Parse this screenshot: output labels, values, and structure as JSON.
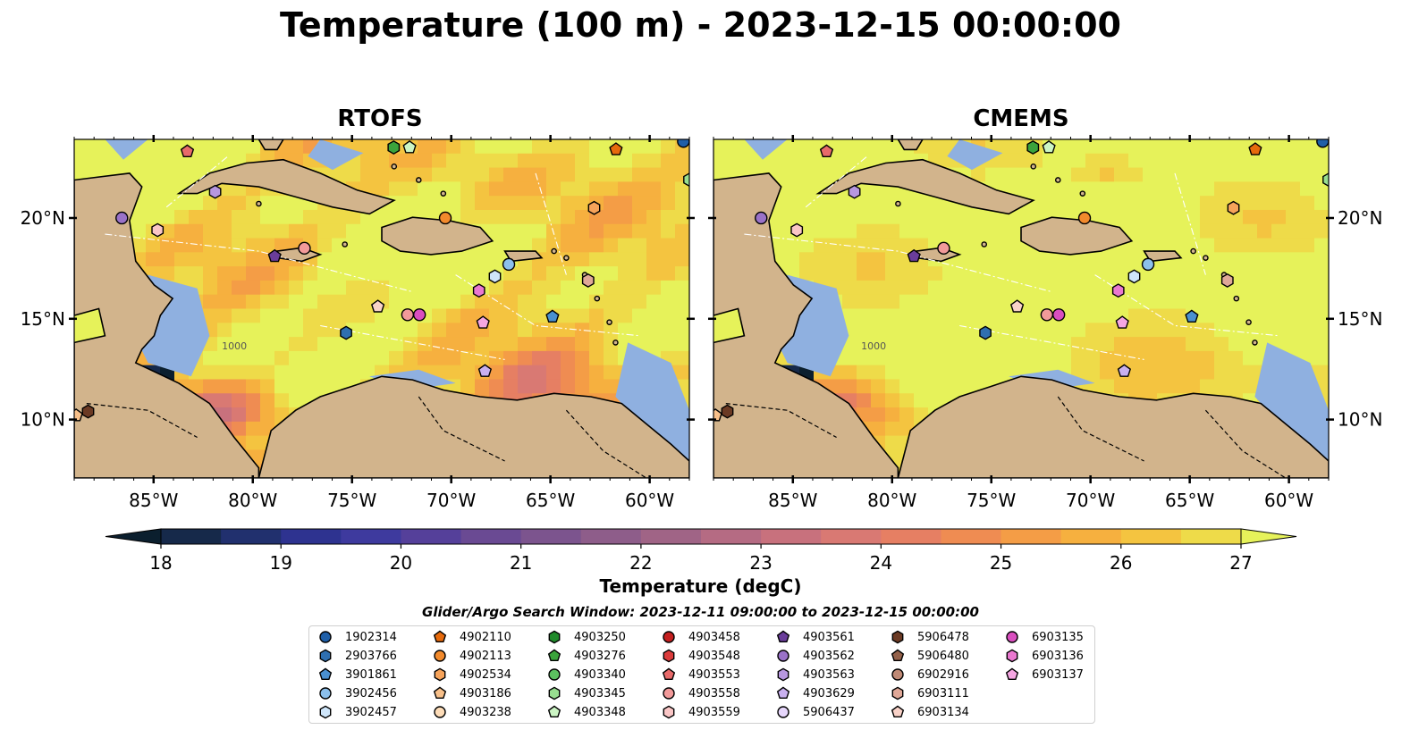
{
  "title": "Temperature (100 m) - 2023-12-15 00:00:00",
  "colors": {
    "land": "#d2b48c",
    "shallow": "#8fb0e0",
    "bg": "#ffffff",
    "colormap": [
      "#0b1f2e",
      "#16294a",
      "#21306e",
      "#2e3390",
      "#3e3a9e",
      "#55409a",
      "#6a4a93",
      "#7c548e",
      "#8e5d8a",
      "#a06486",
      "#b56b83",
      "#c8717d",
      "#d97973",
      "#e67f63",
      "#ef8c52",
      "#f49d46",
      "#f6b03f",
      "#f4c440",
      "#eedb49",
      "#e6f25a"
    ]
  },
  "chart_data": [
    {
      "type": "heatmap",
      "panel_title": "RTOFS",
      "xticks": [
        "85°W",
        "80°W",
        "75°W",
        "70°W",
        "65°W",
        "60°W"
      ],
      "yticks": [
        "20°N",
        "15°N",
        "10°N"
      ],
      "lon_range": [
        -89,
        -58
      ],
      "lat_range": [
        7.1,
        23.9
      ],
      "contour_labels": [
        "1000"
      ]
    },
    {
      "type": "heatmap",
      "panel_title": "CMEMS",
      "xticks": [
        "85°W",
        "80°W",
        "75°W",
        "70°W",
        "65°W",
        "60°W"
      ],
      "yticks": [
        "20°N",
        "15°N",
        "10°N"
      ],
      "lon_range": [
        -89,
        -58
      ],
      "lat_range": [
        7.1,
        23.9
      ],
      "contour_labels": [
        "1000"
      ]
    }
  ],
  "colorbar": {
    "label": "Temperature (degC)",
    "ticks": [
      "18",
      "19",
      "20",
      "21",
      "22",
      "23",
      "24",
      "25",
      "26",
      "27"
    ],
    "range": [
      18,
      27
    ],
    "extend": "both"
  },
  "legend": {
    "title": "Glider/Argo Search Window: 2023-12-11 09:00:00 to 2023-12-15 00:00:00",
    "columns": 7,
    "items": [
      {
        "label": "1902314",
        "marker": "circle",
        "color": "#1f5fa8"
      },
      {
        "label": "2903766",
        "marker": "hexagon",
        "color": "#2f6fb0"
      },
      {
        "label": "3901861",
        "marker": "pentagon",
        "color": "#4a90d0"
      },
      {
        "label": "3902456",
        "marker": "circle",
        "color": "#8cc0ec"
      },
      {
        "label": "3902457",
        "marker": "hexagon",
        "color": "#cfe6fa"
      },
      {
        "label": "4902110",
        "marker": "pentagon",
        "color": "#e66a0c"
      },
      {
        "label": "4902113",
        "marker": "circle",
        "color": "#f28a2c"
      },
      {
        "label": "4902534",
        "marker": "hexagon",
        "color": "#f6a35a"
      },
      {
        "label": "4903186",
        "marker": "pentagon",
        "color": "#f8c08a"
      },
      {
        "label": "4903238",
        "marker": "circle",
        "color": "#fddcb8"
      },
      {
        "label": "4903250",
        "marker": "hexagon",
        "color": "#1f8a2a"
      },
      {
        "label": "4903276",
        "marker": "pentagon",
        "color": "#3ba33c"
      },
      {
        "label": "4903340",
        "marker": "circle",
        "color": "#5cc060"
      },
      {
        "label": "4903345",
        "marker": "hexagon",
        "color": "#98de90"
      },
      {
        "label": "4903348",
        "marker": "pentagon",
        "color": "#ccf5c4"
      },
      {
        "label": "4903458",
        "marker": "circle",
        "color": "#c41f1f"
      },
      {
        "label": "4903548",
        "marker": "hexagon",
        "color": "#dc3c3c"
      },
      {
        "label": "4903553",
        "marker": "pentagon",
        "color": "#e86a6a"
      },
      {
        "label": "4903558",
        "marker": "circle",
        "color": "#f29a9a"
      },
      {
        "label": "4903559",
        "marker": "hexagon",
        "color": "#fac6c6"
      },
      {
        "label": "4903561",
        "marker": "pentagon",
        "color": "#6a3d9a"
      },
      {
        "label": "4903562",
        "marker": "circle",
        "color": "#9a72c8"
      },
      {
        "label": "4903563",
        "marker": "hexagon",
        "color": "#b797df"
      },
      {
        "label": "4903629",
        "marker": "pentagon",
        "color": "#c9b0ef"
      },
      {
        "label": "5906437",
        "marker": "circle",
        "color": "#e6d6fb"
      },
      {
        "label": "5906478",
        "marker": "hexagon",
        "color": "#6b3a24"
      },
      {
        "label": "5906480",
        "marker": "pentagon",
        "color": "#94614a"
      },
      {
        "label": "6902916",
        "marker": "circle",
        "color": "#c08a76"
      },
      {
        "label": "6903111",
        "marker": "hexagon",
        "color": "#e0a898"
      },
      {
        "label": "6903134",
        "marker": "pentagon",
        "color": "#f9d2c8"
      },
      {
        "label": "6903135",
        "marker": "circle",
        "color": "#d94fbf"
      },
      {
        "label": "6903136",
        "marker": "hexagon",
        "color": "#ea78d0"
      },
      {
        "label": "6903137",
        "marker": "pentagon",
        "color": "#f5a6e2"
      }
    ]
  },
  "floats": [
    {
      "lon": -86.6,
      "lat": 20.0,
      "marker": "circle",
      "color": "#9a72c8"
    },
    {
      "lon": -84.8,
      "lat": 19.4,
      "marker": "hexagon",
      "color": "#fac6c6"
    },
    {
      "lon": -83.3,
      "lat": 23.3,
      "marker": "pentagon",
      "color": "#e86a6a"
    },
    {
      "lon": -81.9,
      "lat": 21.3,
      "marker": "hexagon",
      "color": "#b797df"
    },
    {
      "lon": -78.9,
      "lat": 18.1,
      "marker": "pentagon",
      "color": "#6a3d9a"
    },
    {
      "lon": -77.4,
      "lat": 18.5,
      "marker": "circle",
      "color": "#f29a9a"
    },
    {
      "lon": -75.3,
      "lat": 14.3,
      "marker": "hexagon",
      "color": "#2f6fb0"
    },
    {
      "lon": -73.7,
      "lat": 15.6,
      "marker": "pentagon",
      "color": "#f9d2c8"
    },
    {
      "lon": -72.2,
      "lat": 15.2,
      "marker": "circle",
      "color": "#f29a9a"
    },
    {
      "lon": -71.6,
      "lat": 15.2,
      "marker": "circle",
      "color": "#d94fbf"
    },
    {
      "lon": -72.9,
      "lat": 23.5,
      "marker": "hexagon",
      "color": "#3ba33c"
    },
    {
      "lon": -72.1,
      "lat": 23.5,
      "marker": "pentagon",
      "color": "#ccf5c4"
    },
    {
      "lon": -70.3,
      "lat": 20.0,
      "marker": "circle",
      "color": "#f28a2c"
    },
    {
      "lon": -68.6,
      "lat": 16.4,
      "marker": "hexagon",
      "color": "#ea78d0"
    },
    {
      "lon": -68.4,
      "lat": 14.8,
      "marker": "pentagon",
      "color": "#f5a6e2"
    },
    {
      "lon": -68.3,
      "lat": 12.4,
      "marker": "pentagon",
      "color": "#c9b0ef"
    },
    {
      "lon": -67.8,
      "lat": 17.1,
      "marker": "hexagon",
      "color": "#cfe6fa"
    },
    {
      "lon": -67.1,
      "lat": 17.7,
      "marker": "circle",
      "color": "#8cc0ec"
    },
    {
      "lon": -64.9,
      "lat": 15.1,
      "marker": "pentagon",
      "color": "#4a90d0"
    },
    {
      "lon": -62.8,
      "lat": 20.5,
      "marker": "hexagon",
      "color": "#f6a35a"
    },
    {
      "lon": -63.1,
      "lat": 16.9,
      "marker": "hexagon",
      "color": "#e0a898"
    },
    {
      "lon": -61.7,
      "lat": 23.4,
      "marker": "pentagon",
      "color": "#e66a0c"
    },
    {
      "lon": -58.3,
      "lat": 23.8,
      "marker": "circle",
      "color": "#1f5fa8"
    },
    {
      "lon": -58.0,
      "lat": 21.9,
      "marker": "hexagon",
      "color": "#98de90"
    },
    {
      "lon": -88.9,
      "lat": 10.2,
      "marker": "pentagon",
      "color": "#f8c08a"
    },
    {
      "lon": -88.3,
      "lat": 10.4,
      "marker": "hexagon",
      "color": "#6b3a24"
    }
  ]
}
